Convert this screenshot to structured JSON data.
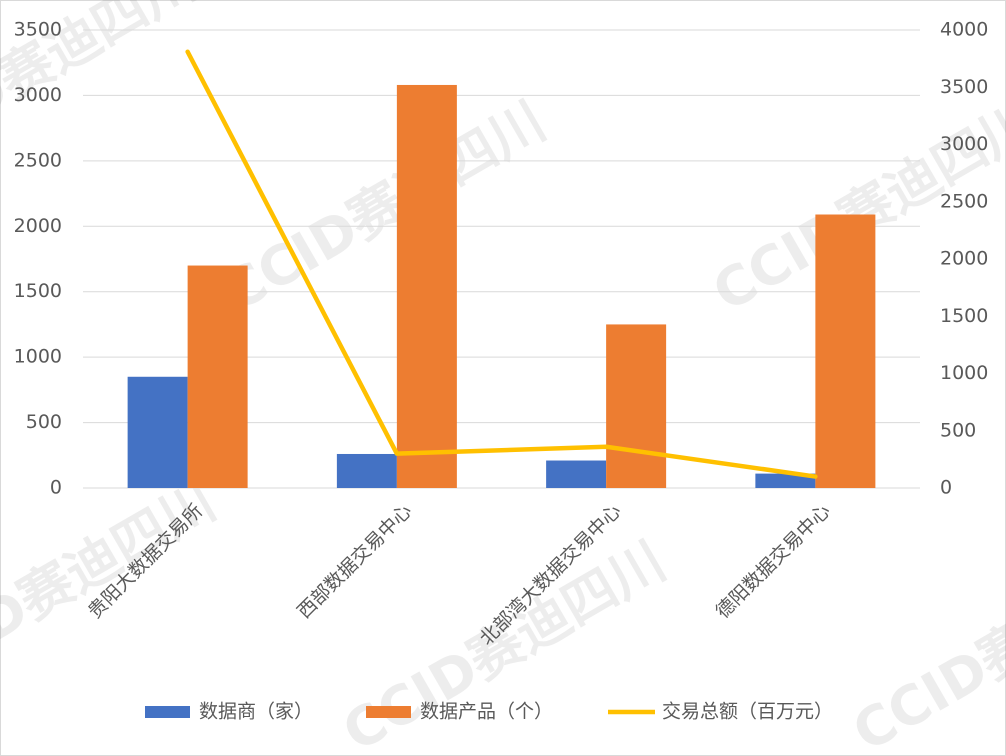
{
  "chart_data": {
    "type": "bar",
    "categories": [
      "贵阳大数据交易所",
      "西部数据交易中心",
      "北部湾大数据交易中心",
      "德阳数据交易中心"
    ],
    "series": [
      {
        "name": "数据商（家）",
        "color": "#4472c4",
        "values": [
          850,
          260,
          210,
          110
        ]
      },
      {
        "name": "数据产品（个）",
        "color": "#ed7d31",
        "values": [
          1700,
          3080,
          1250,
          2090
        ]
      },
      {
        "name": "交易总额（百万元）",
        "color": "#ffc000",
        "values": [
          3810,
          300,
          360,
          100
        ],
        "type": "line",
        "axis": "y2"
      }
    ],
    "ylim": [
      0,
      3500
    ],
    "yticks": [
      0,
      500,
      1000,
      1500,
      2000,
      2500,
      3000,
      3500
    ],
    "y2lim": [
      0,
      4000
    ],
    "y2ticks": [
      0,
      500,
      1000,
      1500,
      2000,
      2500,
      3000,
      3500,
      4000
    ],
    "grid": true,
    "legend": "bottom",
    "watermark": "CCID赛迪四川"
  }
}
